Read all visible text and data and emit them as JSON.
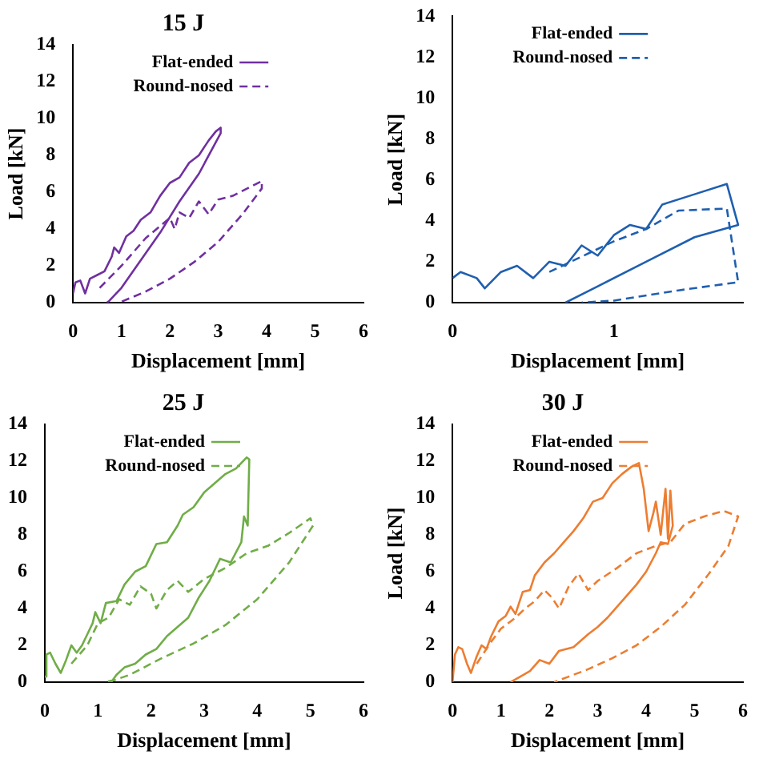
{
  "chart_data": [
    {
      "type": "line",
      "title": "15 J",
      "xlabel": "Displacement [mm]",
      "ylabel": "Load [kN]",
      "xlim": [
        0,
        6
      ],
      "xticks": [
        0,
        1,
        2,
        3,
        4,
        5,
        6
      ],
      "ylim": [
        0,
        14
      ],
      "yticks": [
        0,
        2,
        4,
        6,
        8,
        10,
        12,
        14
      ],
      "legend": "top left",
      "grid": false,
      "marker": "none",
      "series": [
        {
          "name": "Flat-ended",
          "color": "#7030a0",
          "line_style": "solid",
          "x": [
            0,
            0.05,
            0.15,
            0.25,
            0.35,
            0.5,
            0.65,
            0.8,
            0.85,
            0.95,
            1.1,
            1.25,
            1.4,
            1.6,
            1.8,
            2.0,
            2.2,
            2.4,
            2.6,
            2.8,
            2.95,
            3.05,
            3.05,
            2.6,
            2.2,
            1.8,
            1.4,
            1.0,
            0.75,
            0.7
          ],
          "values": [
            0.5,
            1.1,
            1.2,
            0.5,
            1.3,
            1.5,
            1.7,
            2.5,
            3.0,
            2.7,
            3.6,
            3.9,
            4.5,
            4.9,
            5.8,
            6.5,
            6.8,
            7.6,
            8.0,
            8.8,
            9.3,
            9.5,
            9.2,
            7.0,
            5.5,
            3.8,
            2.3,
            0.8,
            0.1,
            0
          ]
        },
        {
          "name": "Round-nosed",
          "color": "#7030a0",
          "line_style": "dashed",
          "x": [
            0.55,
            1.0,
            1.5,
            2.0,
            2.1,
            2.2,
            2.4,
            2.6,
            2.8,
            3.0,
            3.3,
            3.6,
            3.9,
            3.9,
            3.5,
            3.0,
            2.5,
            2.0,
            1.5,
            1.0
          ],
          "values": [
            0.8,
            2,
            3.5,
            4.6,
            4.0,
            4.9,
            4.6,
            5.5,
            4.8,
            5.6,
            5.8,
            6.2,
            6.6,
            6.2,
            4.8,
            3.3,
            2.2,
            1.3,
            0.6,
            0.05
          ]
        }
      ]
    },
    {
      "type": "line",
      "xlabel": "Displacement [mm]",
      "ylabel": "Load [kN]",
      "xlim": [
        0,
        1.8
      ],
      "xticks": [
        0,
        1
      ],
      "ylim": [
        0,
        14
      ],
      "yticks": [
        0,
        2,
        4,
        6,
        8,
        10,
        12,
        14
      ],
      "legend": "top left",
      "grid": false,
      "marker": "none",
      "series": [
        {
          "name": "Flat-ended",
          "color": "#1f5fb0",
          "line_style": "solid",
          "x": [
            0,
            0.05,
            0.15,
            0.2,
            0.3,
            0.4,
            0.5,
            0.6,
            0.7,
            0.8,
            0.9,
            1.0,
            1.1,
            1.2,
            1.3,
            1.5,
            1.7,
            1.77,
            1.5,
            1.2,
            0.9,
            0.7
          ],
          "values": [
            1.2,
            1.5,
            1.2,
            0.7,
            1.5,
            1.8,
            1.2,
            2.0,
            1.8,
            2.8,
            2.3,
            3.3,
            3.8,
            3.6,
            4.8,
            5.3,
            5.8,
            3.8,
            3.2,
            2.0,
            0.8,
            0
          ]
        },
        {
          "name": "Round-nosed",
          "color": "#1f5fb0",
          "line_style": "dashed",
          "x": [
            0.6,
            1.0,
            1.2,
            1.4,
            1.7,
            1.77,
            1.4,
            1.0,
            0.8
          ],
          "values": [
            1.5,
            3.0,
            3.6,
            4.5,
            4.6,
            1.0,
            0.6,
            0.1,
            0
          ]
        }
      ]
    },
    {
      "type": "line",
      "title": "25 J",
      "xlabel": "Displacement [mm]",
      "xlim": [
        0,
        6
      ],
      "xticks": [
        0,
        1,
        2,
        3,
        4,
        5,
        6
      ],
      "ylim": [
        0,
        14
      ],
      "yticks": [
        0,
        2,
        4,
        6,
        8,
        10,
        12,
        14
      ],
      "legend": "top left",
      "grid": false,
      "marker": "none",
      "series": [
        {
          "name": "Flat-ended",
          "color": "#70ad47",
          "line_style": "solid",
          "x": [
            0,
            0.03,
            0.1,
            0.2,
            0.3,
            0.4,
            0.5,
            0.6,
            0.7,
            0.8,
            0.9,
            0.95,
            1.05,
            1.15,
            1.35,
            1.5,
            1.7,
            1.9,
            2.1,
            2.3,
            2.5,
            2.6,
            2.8,
            3.0,
            3.2,
            3.4,
            3.6,
            3.8,
            3.85,
            3.82,
            3.75,
            3.7,
            3.5,
            3.3,
            3.1,
            2.9,
            2.7,
            2.5,
            2.3,
            2.1,
            1.9,
            1.7,
            1.5,
            1.35,
            1.25
          ],
          "values": [
            0.3,
            1.5,
            1.6,
            1.0,
            0.5,
            1.2,
            2.0,
            1.6,
            2.0,
            2.6,
            3.2,
            3.8,
            3.2,
            4.3,
            4.4,
            5.3,
            6.0,
            6.3,
            7.5,
            7.6,
            8.5,
            9.1,
            9.5,
            10.3,
            10.8,
            11.3,
            11.6,
            12.2,
            12.1,
            8.5,
            9.0,
            7.6,
            6.5,
            6.7,
            5.5,
            4.6,
            3.5,
            3.0,
            2.5,
            1.8,
            1.5,
            1.0,
            0.8,
            0.4,
            0
          ]
        },
        {
          "name": "Round-nosed",
          "color": "#70ad47",
          "line_style": "dashed",
          "x": [
            0.5,
            0.8,
            1.0,
            1.2,
            1.4,
            1.6,
            1.8,
            2.0,
            2.1,
            2.3,
            2.5,
            2.7,
            3.0,
            3.4,
            3.8,
            4.2,
            4.6,
            5.0,
            5.05,
            4.6,
            4.0,
            3.4,
            2.8,
            2.2,
            1.6,
            1.3,
            1.1
          ],
          "values": [
            1.0,
            2.0,
            3.2,
            3.5,
            4.5,
            4.2,
            5.2,
            4.8,
            4.0,
            5.0,
            5.5,
            4.9,
            5.6,
            6.2,
            7.0,
            7.4,
            8.1,
            8.9,
            8.5,
            6.5,
            4.5,
            3.1,
            2.1,
            1.3,
            0.4,
            0.1,
            0
          ]
        }
      ]
    },
    {
      "type": "line",
      "title": "30 J",
      "xlabel": "Displacement [mm]",
      "ylabel": "Load [kN]",
      "xlim": [
        0,
        6
      ],
      "xticks": [
        0,
        1,
        2,
        3,
        4,
        5,
        6
      ],
      "ylim": [
        0,
        14
      ],
      "yticks": [
        0,
        2,
        4,
        6,
        8,
        10,
        12,
        14
      ],
      "legend": "top left",
      "grid": false,
      "marker": "none",
      "series": [
        {
          "name": "Flat-ended",
          "color": "#ed7d31",
          "line_style": "solid",
          "x": [
            0,
            0.05,
            0.12,
            0.2,
            0.3,
            0.38,
            0.5,
            0.6,
            0.7,
            0.8,
            0.95,
            1.1,
            1.2,
            1.3,
            1.45,
            1.6,
            1.7,
            1.9,
            2.1,
            2.3,
            2.5,
            2.7,
            2.9,
            3.1,
            3.3,
            3.5,
            3.7,
            3.85,
            3.95,
            4.05,
            4.15,
            4.2,
            4.3,
            4.4,
            4.45,
            4.5,
            4.55,
            4.45,
            4.3,
            4.2,
            4.0,
            3.8,
            3.5,
            3.2,
            3.0,
            2.8,
            2.5,
            2.2,
            2.0,
            1.8,
            1.6,
            1.4,
            1.2
          ],
          "values": [
            0,
            1.5,
            1.9,
            1.8,
            1.0,
            0.5,
            1.4,
            2.0,
            1.8,
            2.5,
            3.3,
            3.6,
            4.1,
            3.7,
            4.9,
            5.0,
            5.8,
            6.5,
            7.0,
            7.6,
            8.2,
            8.9,
            9.8,
            10.0,
            10.8,
            11.3,
            11.7,
            11.9,
            10.5,
            8.2,
            9.2,
            9.8,
            8.0,
            10.5,
            7.8,
            10.4,
            8.5,
            7.5,
            7.6,
            7.0,
            6.0,
            5.3,
            4.4,
            3.5,
            3.0,
            2.6,
            1.9,
            1.7,
            1.0,
            1.2,
            0.6,
            0.3,
            0
          ]
        },
        {
          "name": "Round-nosed",
          "color": "#ed7d31",
          "line_style": "dashed",
          "x": [
            0.5,
            0.8,
            1.0,
            1.3,
            1.5,
            1.7,
            1.9,
            2.05,
            2.2,
            2.4,
            2.6,
            2.8,
            3.0,
            3.4,
            3.8,
            4.2,
            4.5,
            4.8,
            5.2,
            5.6,
            5.9,
            5.7,
            5.3,
            4.8,
            4.3,
            3.8,
            3.3,
            2.8,
            2.4,
            2.1
          ],
          "values": [
            1.0,
            2.2,
            2.9,
            3.5,
            4.0,
            4.4,
            5.0,
            4.6,
            4.0,
            5.2,
            5.9,
            5.0,
            5.5,
            6.2,
            7.0,
            7.4,
            7.6,
            8.6,
            9.0,
            9.3,
            9.0,
            7.4,
            5.9,
            4.2,
            3.0,
            2.0,
            1.3,
            0.7,
            0.3,
            0
          ]
        }
      ]
    }
  ]
}
